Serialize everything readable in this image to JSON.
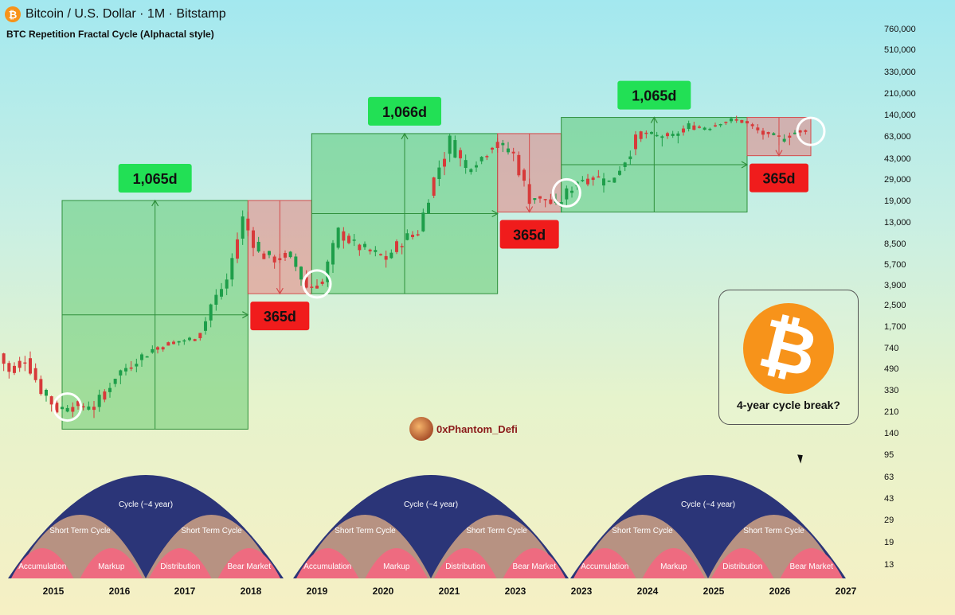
{
  "header": {
    "title": "Bitcoin / U.S. Dollar · 1M · Bitstamp",
    "subtitle": "BTC Repetition Fractal Cycle (Alphactal style)",
    "coin_symbol": "₿"
  },
  "colors": {
    "bull": "#1e9e4a",
    "bear": "#d73a3a",
    "green_box": "#4cc35d",
    "red_box": "#ee6b6b",
    "badge_green": "#22e055",
    "badge_red": "#f01c1c",
    "arc_navy": "#2b3578",
    "arc_mid": "#b79282",
    "arc_pink": "#ee6b80"
  },
  "chart_data": {
    "type": "candlestick",
    "title": "Bitcoin / U.S. Dollar · 1M · Bitstamp",
    "price_scale": "log",
    "price_ticks": [
      760000,
      510000,
      330000,
      210000,
      140000,
      63000,
      43000,
      29000,
      19000,
      13000,
      8500,
      5700,
      3900,
      2500,
      1700,
      740,
      490,
      330,
      210,
      140,
      95,
      63,
      43,
      29,
      19,
      13
    ],
    "x_ticks": [
      "2015",
      "2016",
      "2017",
      "2018",
      "2019",
      "2020",
      "2021",
      "2023",
      "2023",
      "2024",
      "2025",
      "2026",
      "2027"
    ],
    "phases": [
      {
        "kind": "bull",
        "label": "1,065d",
        "start": "2015-01",
        "end": "2017-12",
        "low": 150,
        "high": 19000
      },
      {
        "kind": "bear",
        "label": "365d",
        "start": "2017-12",
        "end": "2018-12",
        "low": 3200,
        "high": 19000
      },
      {
        "kind": "bull",
        "label": "1,066d",
        "start": "2018-12",
        "end": "2021-11",
        "low": 3200,
        "high": 69000
      },
      {
        "kind": "bear",
        "label": "365d",
        "start": "2021-11",
        "end": "2022-11",
        "low": 15500,
        "high": 69000
      },
      {
        "kind": "bull",
        "label": "1,065d",
        "start": "2022-11",
        "end": "2025-10",
        "low": 15500,
        "high": 126000
      },
      {
        "kind": "bear",
        "label": "365d",
        "start": "2025-10",
        "end": "2026-10",
        "low": 45000,
        "high": 126000
      }
    ],
    "cycle_arcs": [
      {
        "cycle": "Cycle (~4 year)",
        "short_left": "Short Term Cycle",
        "short_right": "Short Term Cycle",
        "phases": [
          "Accumulation",
          "Markup",
          "Distribution",
          "Bear Market"
        ]
      },
      {
        "cycle": "Cycle (~4 year)",
        "short_left": "Short Term Cycle",
        "short_right": "Short Term Cycle",
        "phases": [
          "Accumulation",
          "Markup",
          "Distribution",
          "Bear Market"
        ]
      },
      {
        "cycle": "Cycle (~4 year)",
        "short_left": "Short Term Cycle",
        "short_right": "Short Term Cycle",
        "phases": [
          "Accumulation",
          "Markup",
          "Distribution",
          "Bear Market"
        ]
      }
    ],
    "close_series": [
      {
        "t": "2014-01",
        "c": 800
      },
      {
        "t": "2014-04",
        "c": 450
      },
      {
        "t": "2014-07",
        "c": 600
      },
      {
        "t": "2014-10",
        "c": 330
      },
      {
        "t": "2015-01",
        "c": 220
      },
      {
        "t": "2015-04",
        "c": 235
      },
      {
        "t": "2015-08",
        "c": 230
      },
      {
        "t": "2015-12",
        "c": 430
      },
      {
        "t": "2016-06",
        "c": 670
      },
      {
        "t": "2016-12",
        "c": 960
      },
      {
        "t": "2017-03",
        "c": 1070
      },
      {
        "t": "2017-06",
        "c": 2500
      },
      {
        "t": "2017-09",
        "c": 4300
      },
      {
        "t": "2017-12",
        "c": 13800
      },
      {
        "t": "2018-03",
        "c": 7000
      },
      {
        "t": "2018-06",
        "c": 6400
      },
      {
        "t": "2018-09",
        "c": 6600
      },
      {
        "t": "2018-12",
        "c": 3700
      },
      {
        "t": "2019-03",
        "c": 4100
      },
      {
        "t": "2019-06",
        "c": 10800
      },
      {
        "t": "2019-09",
        "c": 8300
      },
      {
        "t": "2019-12",
        "c": 7200
      },
      {
        "t": "2020-03",
        "c": 6400
      },
      {
        "t": "2020-06",
        "c": 9100
      },
      {
        "t": "2020-09",
        "c": 10800
      },
      {
        "t": "2020-12",
        "c": 29000
      },
      {
        "t": "2021-03",
        "c": 58800
      },
      {
        "t": "2021-06",
        "c": 35000
      },
      {
        "t": "2021-09",
        "c": 43800
      },
      {
        "t": "2021-11",
        "c": 57000
      },
      {
        "t": "2022-03",
        "c": 45500
      },
      {
        "t": "2022-06",
        "c": 19900
      },
      {
        "t": "2022-09",
        "c": 19400
      },
      {
        "t": "2022-11",
        "c": 17100
      },
      {
        "t": "2023-03",
        "c": 28500
      },
      {
        "t": "2023-06",
        "c": 30500
      },
      {
        "t": "2023-09",
        "c": 27000
      },
      {
        "t": "2023-12",
        "c": 42300
      },
      {
        "t": "2024-03",
        "c": 71300
      },
      {
        "t": "2024-06",
        "c": 62700
      },
      {
        "t": "2024-09",
        "c": 63300
      },
      {
        "t": "2024-12",
        "c": 93400
      },
      {
        "t": "2025-03",
        "c": 82500
      },
      {
        "t": "2025-06",
        "c": 107000
      },
      {
        "t": "2025-09",
        "c": 114000
      },
      {
        "t": "2025-10",
        "c": 110000
      },
      {
        "t": "2026-02",
        "c": 68000
      },
      {
        "t": "2026-05",
        "c": 60000
      },
      {
        "t": "2026-08",
        "c": 72000
      },
      {
        "t": "2026-10",
        "c": 75000
      }
    ],
    "highlight_circles": [
      "2015-02",
      "2019-01",
      "2022-12",
      "2026-10"
    ]
  },
  "panel": {
    "caption": "4-year cycle break?",
    "logo_symbol": "₿"
  },
  "watermark": {
    "handle": "0xPhantom_Defi"
  }
}
